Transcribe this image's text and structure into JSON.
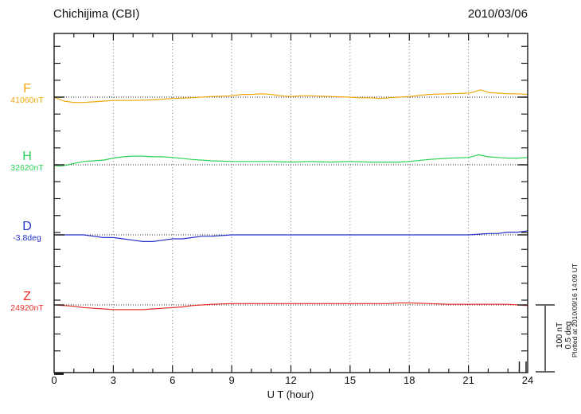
{
  "header": {
    "title": "Chichijima (CBI)",
    "date": "2010/03/06"
  },
  "axes": {
    "xlabel": "U T (hour)"
  },
  "scale_bar": {
    "line1": "100 nT",
    "line2": "0.5 deg"
  },
  "footer": {
    "plotted_at": "Plotted at 2010/09/16 14:09 UT"
  },
  "chart_data": {
    "type": "line",
    "title": "Chichijima (CBI)",
    "date": "2010/03/06",
    "xlabel": "U T (hour)",
    "xlim": [
      0,
      24
    ],
    "x_ticks": [
      0,
      3,
      6,
      9,
      12,
      15,
      18,
      21,
      24
    ],
    "grid": "dotted vertical lines every 3 hours; dotted horizontal baseline per channel",
    "scale": {
      "nT_per_division": 100,
      "deg_per_division": 0.5
    },
    "series": [
      {
        "name": "F",
        "unit": "nT",
        "baseline": 41060,
        "baseline_label": "41060nT",
        "color": "#f2a70e",
        "x": [
          0,
          0.5,
          1,
          1.5,
          2,
          2.5,
          3,
          4,
          5,
          6,
          7,
          8,
          9,
          9.5,
          10,
          10.5,
          11,
          11.5,
          12,
          12.5,
          13,
          14,
          15,
          15.5,
          16,
          16.5,
          17,
          17.5,
          18,
          19,
          20,
          21,
          21.3,
          21.6,
          22,
          22.5,
          23,
          23.5,
          24
        ],
        "offset": [
          0,
          -6,
          -8,
          -8,
          -7,
          -6,
          -5,
          -5,
          -4,
          -2,
          -1,
          1,
          2,
          4,
          4,
          5,
          4,
          2,
          1,
          2,
          2,
          1,
          0,
          -1,
          -1,
          -2,
          -1,
          0,
          1,
          4,
          5,
          6,
          8,
          11,
          7,
          6,
          5,
          5,
          4
        ]
      },
      {
        "name": "H",
        "unit": "nT",
        "baseline": 32620,
        "baseline_label": "32620nT",
        "color": "#2bd153",
        "x": [
          0,
          0.3,
          0.7,
          1,
          1.5,
          2,
          2.5,
          3,
          3.5,
          4,
          4.5,
          5,
          5.5,
          6,
          7,
          8,
          9,
          10,
          11,
          12,
          13,
          14,
          15,
          16,
          17,
          17.5,
          18,
          19,
          20,
          21,
          21.5,
          22,
          22.5,
          23,
          23.5,
          24
        ],
        "offset": [
          -1,
          -2,
          0,
          2,
          5,
          6,
          7,
          10,
          12,
          13,
          13,
          12,
          12,
          11,
          8,
          6,
          5,
          5,
          5,
          4,
          5,
          4,
          5,
          4,
          4,
          4,
          5,
          8,
          10,
          11,
          15,
          12,
          11,
          10,
          10,
          11
        ]
      },
      {
        "name": "D",
        "unit": "deg",
        "baseline": -3.8,
        "baseline_label": "-3.8deg",
        "color": "#2430cc",
        "x": [
          0,
          1,
          1.5,
          2,
          2.5,
          3,
          3.5,
          4,
          4.5,
          5,
          5.5,
          6,
          6.5,
          7,
          7.5,
          8,
          9,
          10,
          12,
          14,
          16,
          18,
          20,
          21,
          22,
          22.5,
          23,
          23.5,
          24
        ],
        "offset": [
          0,
          0,
          0,
          -0.01,
          -0.02,
          -0.02,
          -0.03,
          -0.04,
          -0.05,
          -0.05,
          -0.04,
          -0.03,
          -0.03,
          -0.02,
          -0.01,
          -0.01,
          0,
          0,
          0,
          0,
          0,
          0,
          0,
          0,
          0.01,
          0.01,
          0.02,
          0.02,
          0.03
        ]
      },
      {
        "name": "Z",
        "unit": "nT",
        "baseline": 24920,
        "baseline_label": "24920nT",
        "color": "#e8302a",
        "x": [
          0,
          0.5,
          1,
          1.5,
          2,
          2.5,
          3,
          3.5,
          4,
          4.5,
          5,
          5.5,
          6,
          6.5,
          7,
          7.5,
          8,
          9,
          10,
          11,
          12,
          13,
          14,
          15,
          16,
          17,
          17.5,
          18,
          19,
          20,
          21,
          22,
          22.5,
          23,
          23.5,
          24
        ],
        "offset": [
          0,
          -1,
          -2,
          -4,
          -5,
          -6,
          -7,
          -7,
          -7,
          -7,
          -6,
          -5,
          -4,
          -3,
          -1,
          0,
          1,
          2,
          2,
          2,
          2,
          2,
          2,
          2,
          2,
          2,
          3,
          3,
          2,
          1,
          1,
          1,
          1,
          1,
          0,
          -1
        ]
      }
    ]
  }
}
